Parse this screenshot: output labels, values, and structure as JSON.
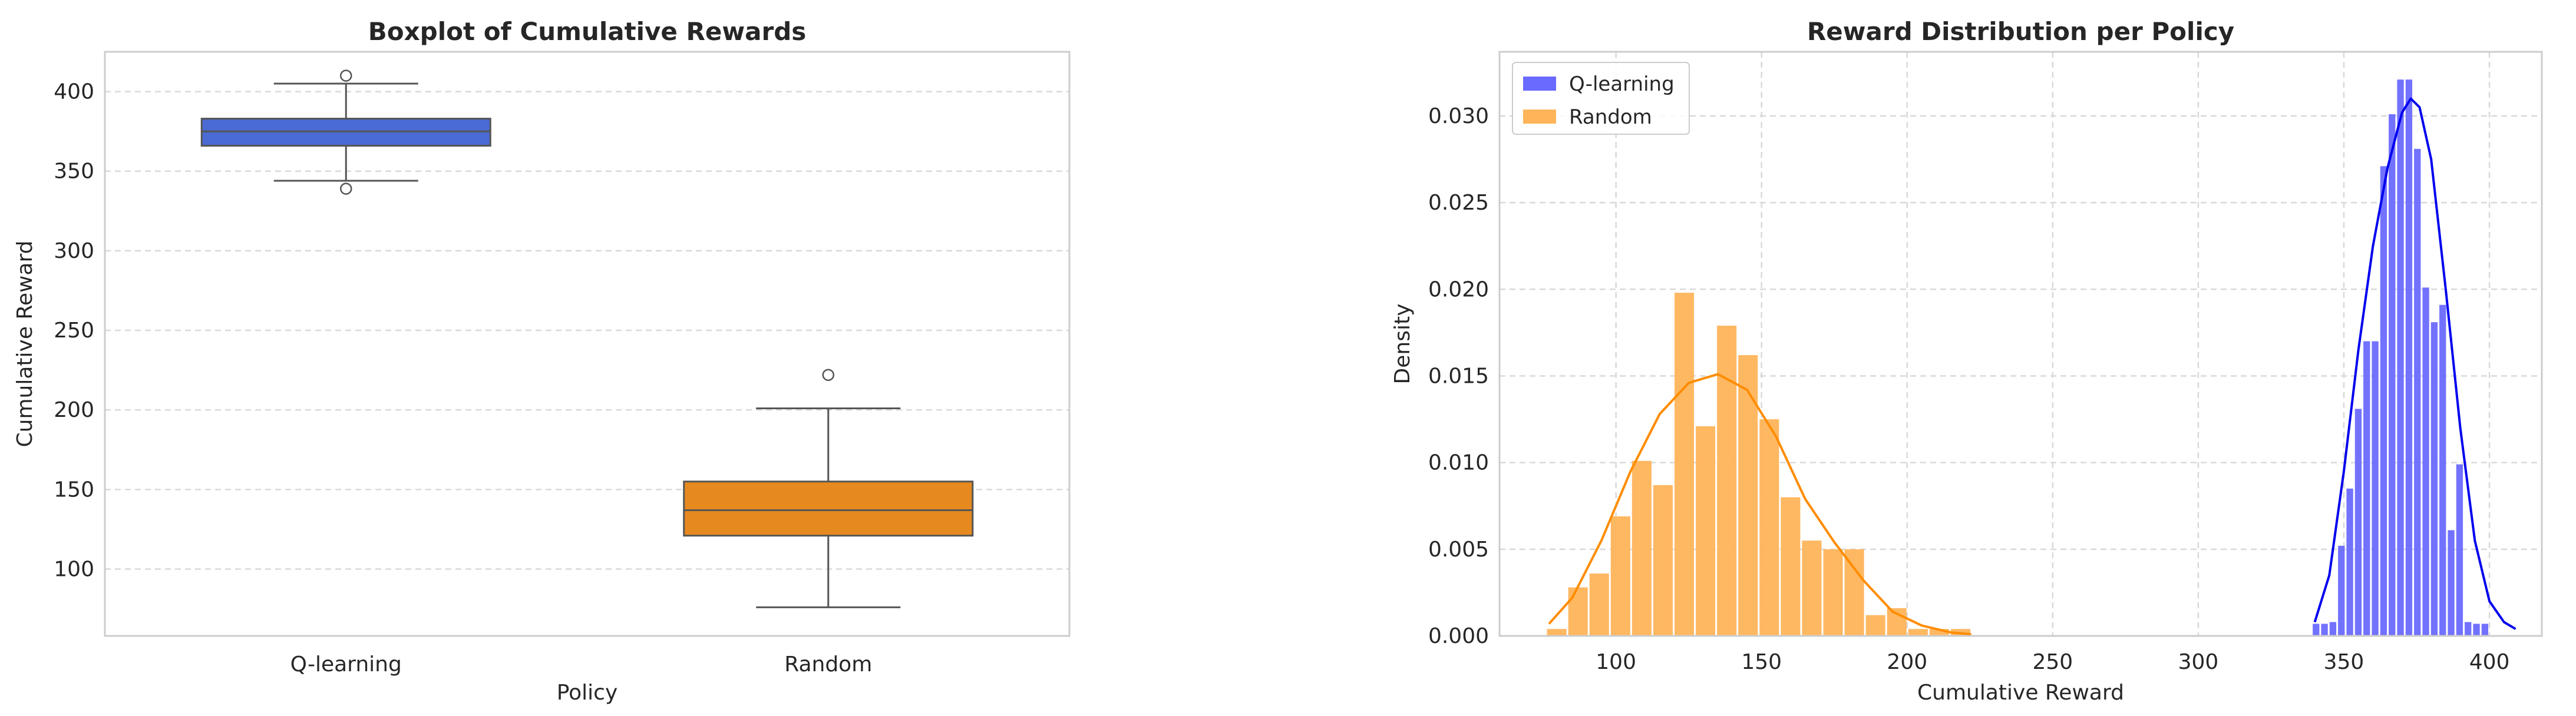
{
  "chart_data": [
    {
      "type": "boxplot",
      "title": "Boxplot of Cumulative Rewards",
      "xlabel": "Policy",
      "ylabel": "Cumulative Reward",
      "categories": [
        "Q-learning",
        "Random"
      ],
      "ylim": [
        58,
        425
      ],
      "yticks": [
        100,
        150,
        200,
        250,
        300,
        350,
        400
      ],
      "grid": "y",
      "colors": [
        "#4a6bd4",
        "#e68a1f"
      ],
      "boxes": [
        {
          "name": "Q-learning",
          "whisker_low": 344,
          "q1": 366,
          "median": 375,
          "q3": 383,
          "whisker_high": 405,
          "outliers": [
            339,
            410
          ]
        },
        {
          "name": "Random",
          "whisker_low": 76,
          "q1": 121,
          "median": 137,
          "q3": 155,
          "whisker_high": 201,
          "outliers": [
            222
          ]
        }
      ]
    },
    {
      "type": "histogram",
      "title": "Reward Distribution per Policy",
      "xlabel": "Cumulative Reward",
      "ylabel": "Density",
      "xlim": [
        60,
        418
      ],
      "ylim": [
        0,
        0.0337
      ],
      "xticks": [
        100,
        150,
        200,
        250,
        300,
        350,
        400
      ],
      "yticks": [
        0.0,
        0.005,
        0.01,
        0.015,
        0.02,
        0.025,
        0.03
      ],
      "ytick_labels": [
        "0.000",
        "0.005",
        "0.010",
        "0.015",
        "0.020",
        "0.025",
        "0.030"
      ],
      "grid": "both",
      "legend_position": "upper-left",
      "series": [
        {
          "name": "Q-learning",
          "color": "#6a6aff",
          "kde_color": "#0000ee",
          "bin_start": 339,
          "bin_width": 2.9,
          "densities": [
            0.0007,
            0.0007,
            0.0008,
            0.0052,
            0.0085,
            0.0131,
            0.017,
            0.017,
            0.0271,
            0.0301,
            0.0321,
            0.0321,
            0.0281,
            0.0201,
            0.0181,
            0.0191,
            0.0061,
            0.0099,
            0.0008,
            0.0007,
            0.0007
          ],
          "kde": [
            [
              340,
              0.0008
            ],
            [
              345,
              0.0035
            ],
            [
              350,
              0.0095
            ],
            [
              355,
              0.0165
            ],
            [
              360,
              0.0225
            ],
            [
              365,
              0.027
            ],
            [
              370,
              0.0302
            ],
            [
              373,
              0.031
            ],
            [
              376,
              0.0305
            ],
            [
              380,
              0.0275
            ],
            [
              385,
              0.02
            ],
            [
              390,
              0.012
            ],
            [
              395,
              0.0055
            ],
            [
              400,
              0.002
            ],
            [
              405,
              0.0008
            ],
            [
              409,
              0.0004
            ]
          ]
        },
        {
          "name": "Random",
          "color": "#ffb45a",
          "kde_color": "#ff8c00",
          "bin_start": 76,
          "bin_width": 7.3,
          "densities": [
            0.0004,
            0.0028,
            0.0036,
            0.0069,
            0.0101,
            0.0087,
            0.0198,
            0.0121,
            0.0179,
            0.0162,
            0.0125,
            0.008,
            0.0055,
            0.005,
            0.005,
            0.0012,
            0.0016,
            0.0004,
            0.0004,
            0.0004
          ],
          "kde": [
            [
              77,
              0.0007
            ],
            [
              85,
              0.0022
            ],
            [
              95,
              0.0055
            ],
            [
              105,
              0.0095
            ],
            [
              115,
              0.0128
            ],
            [
              125,
              0.0146
            ],
            [
              135,
              0.0151
            ],
            [
              145,
              0.0142
            ],
            [
              155,
              0.0115
            ],
            [
              165,
              0.0079
            ],
            [
              175,
              0.0054
            ],
            [
              185,
              0.0032
            ],
            [
              195,
              0.0014
            ],
            [
              205,
              0.0006
            ],
            [
              215,
              0.0002
            ],
            [
              222,
              0.0001
            ]
          ]
        }
      ]
    }
  ]
}
